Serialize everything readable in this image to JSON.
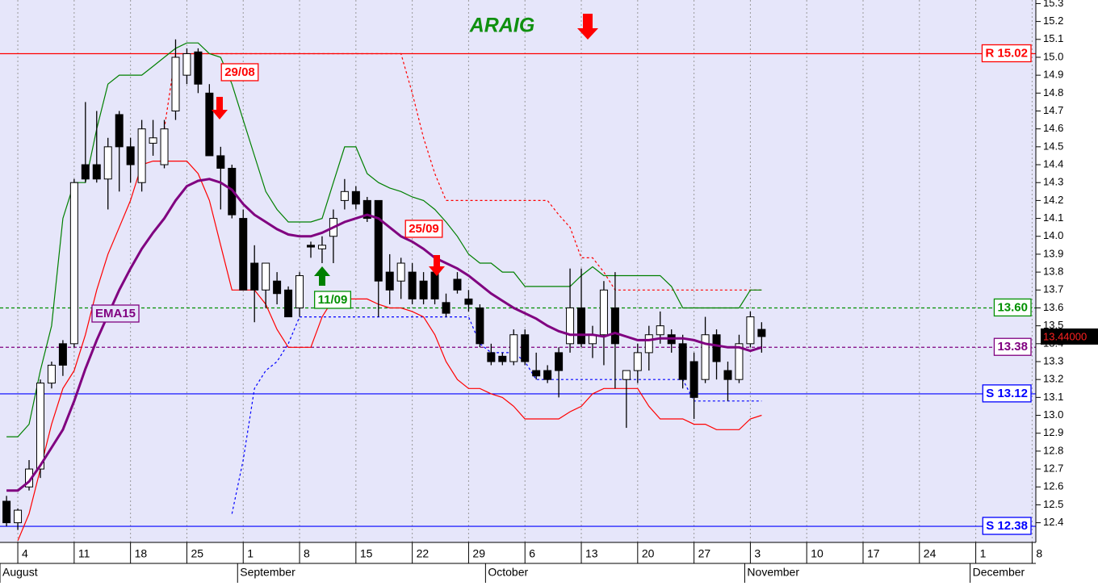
{
  "chart_data": {
    "type": "candlestick",
    "title": "ARAIG",
    "x": [
      -1,
      0,
      1,
      2,
      3,
      4,
      5,
      6,
      7,
      8,
      9,
      10,
      11,
      12,
      13,
      14,
      15,
      16,
      17,
      18,
      19,
      20,
      21,
      22,
      23,
      24,
      25,
      26,
      27,
      28,
      29,
      30,
      31,
      32,
      33,
      34,
      35,
      36,
      37,
      38,
      39,
      40,
      41,
      42,
      43,
      44,
      45,
      46,
      47,
      48,
      49,
      50,
      51,
      52,
      53,
      54,
      55,
      56,
      57,
      58,
      59,
      60,
      61,
      62,
      63,
      64,
      65,
      66
    ],
    "open": [
      12.52,
      12.4,
      12.6,
      12.7,
      13.18,
      13.4,
      13.4,
      14.4,
      14.4,
      14.32,
      14.68,
      14.5,
      14.3,
      14.52,
      14.4,
      14.7,
      14.9,
      15.03,
      14.8,
      14.45,
      14.38,
      14.1,
      13.85,
      13.7,
      13.75,
      13.7,
      13.6,
      13.95,
      13.93,
      14.0,
      14.2,
      14.25,
      14.2,
      14.2,
      13.8,
      13.75,
      13.8,
      13.75,
      13.8,
      13.63,
      13.76,
      13.65,
      13.6,
      13.35,
      13.33,
      13.3,
      13.45,
      13.25,
      13.25,
      13.35,
      13.4,
      13.6,
      13.4,
      13.45,
      13.6,
      13.2,
      13.25,
      13.35,
      13.45,
      13.45,
      13.4,
      13.3,
      13.2,
      13.45,
      13.25,
      13.2,
      13.4,
      13.48
    ],
    "high": [
      12.55,
      12.48,
      12.75,
      13.2,
      13.3,
      13.42,
      14.32,
      14.75,
      14.7,
      14.55,
      14.7,
      14.55,
      14.65,
      14.65,
      14.65,
      15.1,
      15.05,
      15.05,
      14.85,
      14.5,
      14.4,
      14.15,
      13.95,
      13.85,
      13.8,
      13.72,
      13.8,
      13.97,
      14.0,
      14.15,
      14.32,
      14.28,
      14.22,
      14.2,
      13.9,
      13.88,
      13.85,
      13.8,
      13.82,
      13.68,
      13.8,
      13.7,
      13.62,
      13.4,
      13.35,
      13.48,
      13.48,
      13.35,
      13.28,
      13.38,
      13.82,
      13.82,
      13.5,
      13.75,
      13.8,
      13.25,
      13.4,
      13.5,
      13.58,
      13.48,
      13.45,
      13.35,
      13.55,
      13.48,
      13.3,
      13.45,
      13.58,
      13.52
    ],
    "low": [
      12.38,
      12.36,
      12.58,
      12.65,
      13.15,
      13.22,
      13.38,
      14.3,
      14.3,
      14.15,
      14.25,
      14.3,
      14.25,
      14.45,
      14.38,
      14.65,
      14.85,
      14.8,
      14.45,
      14.15,
      14.1,
      13.7,
      13.52,
      13.6,
      13.62,
      13.55,
      13.55,
      13.88,
      13.85,
      13.85,
      14.15,
      14.15,
      14.08,
      13.55,
      13.62,
      13.65,
      13.62,
      13.62,
      13.62,
      13.55,
      13.68,
      13.58,
      13.38,
      13.28,
      13.28,
      13.28,
      13.28,
      13.2,
      13.18,
      13.1,
      13.35,
      13.38,
      13.32,
      13.28,
      13.15,
      12.93,
      13.18,
      13.25,
      13.4,
      13.35,
      13.15,
      12.98,
      13.18,
      13.2,
      13.08,
      13.18,
      13.38,
      13.35
    ],
    "close": [
      12.4,
      12.47,
      12.7,
      13.18,
      13.28,
      13.28,
      14.3,
      14.32,
      14.32,
      14.5,
      14.5,
      14.4,
      14.6,
      14.55,
      14.6,
      15.0,
      15.02,
      14.85,
      14.45,
      14.38,
      14.12,
      13.7,
      13.7,
      13.85,
      13.68,
      13.55,
      13.78,
      13.94,
      13.95,
      14.1,
      14.25,
      14.18,
      14.1,
      13.75,
      13.7,
      13.85,
      13.65,
      13.65,
      13.65,
      13.57,
      13.7,
      13.62,
      13.4,
      13.3,
      13.3,
      13.45,
      13.3,
      13.22,
      13.2,
      13.25,
      13.6,
      13.4,
      13.45,
      13.7,
      13.4,
      13.25,
      13.35,
      13.45,
      13.5,
      13.4,
      13.2,
      13.1,
      13.45,
      13.3,
      13.2,
      13.4,
      13.55,
      13.44
    ],
    "series": [
      {
        "color": "#ff0000",
        "style": "dashed",
        "values": [
          null,
          null,
          null,
          null,
          null,
          null,
          null,
          null,
          null,
          null,
          null,
          null,
          null,
          null,
          14.6,
          15.02,
          15.02,
          15.02,
          15.02,
          15.02,
          15.02,
          15.02,
          15.02,
          15.02,
          15.02,
          15.02,
          15.02,
          15.02,
          15.02,
          15.02,
          15.02,
          15.02,
          15.02,
          15.02,
          15.02,
          15.02,
          14.8,
          14.55,
          14.35,
          14.2,
          14.2,
          14.2,
          14.2,
          14.2,
          14.2,
          14.2,
          14.2,
          14.2,
          14.2,
          14.12,
          14.05,
          13.88,
          13.88,
          13.8,
          13.7,
          13.7,
          13.7,
          13.7,
          13.7,
          13.7,
          13.7,
          13.7,
          13.7,
          13.7,
          13.7,
          13.7,
          13.7,
          13.7
        ]
      },
      {
        "color": "#0000ff",
        "style": "dashed",
        "values": [
          null,
          null,
          null,
          null,
          null,
          null,
          null,
          null,
          null,
          null,
          null,
          null,
          null,
          null,
          null,
          null,
          null,
          null,
          null,
          null,
          12.45,
          12.75,
          13.15,
          13.25,
          13.3,
          13.4,
          13.55,
          13.55,
          13.55,
          13.55,
          13.55,
          13.55,
          13.55,
          13.55,
          13.55,
          13.55,
          13.55,
          13.55,
          13.55,
          13.55,
          13.55,
          13.55,
          13.4,
          13.35,
          13.35,
          13.35,
          13.3,
          13.2,
          13.2,
          13.2,
          13.2,
          13.2,
          13.2,
          13.2,
          13.2,
          13.2,
          13.2,
          13.2,
          13.2,
          13.2,
          13.2,
          13.08,
          13.08,
          13.08,
          13.08,
          13.08,
          13.08,
          13.08
        ]
      },
      {
        "color": "#008000",
        "style": "solid",
        "values": [
          12.88,
          12.88,
          12.95,
          13.25,
          13.5,
          14.1,
          14.3,
          14.3,
          14.6,
          14.85,
          14.9,
          14.9,
          14.9,
          14.95,
          15.0,
          15.05,
          15.08,
          15.08,
          15.02,
          15.0,
          14.85,
          14.65,
          14.45,
          14.25,
          14.15,
          14.08,
          14.08,
          14.08,
          14.1,
          14.3,
          14.5,
          14.5,
          14.35,
          14.3,
          14.27,
          14.25,
          14.22,
          14.2,
          14.15,
          14.08,
          14.0,
          13.9,
          13.85,
          13.85,
          13.8,
          13.8,
          13.72,
          13.72,
          13.72,
          13.72,
          13.72,
          13.78,
          13.83,
          13.78,
          13.78,
          13.78,
          13.78,
          13.78,
          13.78,
          13.72,
          13.6,
          13.6,
          13.6,
          13.6,
          13.6,
          13.6,
          13.7,
          13.7
        ]
      },
      {
        "color": "#ff0000",
        "style": "solid",
        "values": [
          null,
          12.3,
          12.45,
          12.7,
          12.95,
          13.15,
          13.25,
          13.45,
          13.7,
          13.9,
          14.05,
          14.2,
          14.4,
          14.42,
          14.42,
          14.42,
          14.42,
          14.35,
          14.2,
          13.95,
          13.7,
          13.7,
          13.7,
          13.62,
          13.48,
          13.38,
          13.38,
          13.38,
          13.55,
          13.65,
          13.65,
          13.65,
          13.65,
          13.62,
          13.6,
          13.6,
          13.58,
          13.55,
          13.45,
          13.3,
          13.2,
          13.15,
          13.15,
          13.12,
          13.1,
          13.05,
          12.98,
          12.98,
          12.98,
          12.98,
          13.02,
          13.05,
          13.12,
          13.15,
          13.15,
          13.15,
          13.15,
          13.05,
          12.98,
          12.98,
          12.98,
          12.95,
          12.95,
          12.92,
          12.92,
          12.92,
          12.98,
          13.0
        ]
      },
      {
        "name": "EMA15",
        "color": "#800080",
        "style": "thick",
        "values": [
          12.58,
          12.58,
          12.63,
          12.72,
          12.82,
          12.92,
          13.08,
          13.26,
          13.42,
          13.56,
          13.7,
          13.82,
          13.93,
          14.02,
          14.1,
          14.2,
          14.28,
          14.31,
          14.32,
          14.3,
          14.26,
          14.18,
          14.12,
          14.08,
          14.04,
          14.01,
          14.0,
          14.0,
          14.02,
          14.05,
          14.08,
          14.1,
          14.12,
          14.1,
          14.05,
          14.0,
          13.97,
          13.93,
          13.88,
          13.85,
          13.82,
          13.78,
          13.73,
          13.68,
          13.64,
          13.6,
          13.57,
          13.54,
          13.5,
          13.47,
          13.45,
          13.45,
          13.45,
          13.44,
          13.46,
          13.44,
          13.42,
          13.42,
          13.43,
          13.43,
          13.43,
          13.42,
          13.4,
          13.39,
          13.38,
          13.38,
          13.36,
          13.38
        ]
      }
    ],
    "levels": [
      {
        "label": "R 15.02",
        "value": 15.02,
        "color": "#ff0000",
        "style": "solid"
      },
      {
        "label": "13.60",
        "value": 13.6,
        "color": "#009000",
        "style": "dashed"
      },
      {
        "label": "13.38",
        "value": 13.38,
        "color": "#800080",
        "style": "dashed"
      },
      {
        "label": "S 13.12",
        "value": 13.12,
        "color": "#0000ff",
        "style": "solid"
      },
      {
        "label": "S 12.38",
        "value": 12.38,
        "color": "#0000ff",
        "style": "solid"
      }
    ],
    "last_price": {
      "value": 13.44,
      "label": "13.44000"
    },
    "annotations": [
      {
        "text": "29/08",
        "color": "#ff0000"
      },
      {
        "text": "11/09",
        "color": "#009000"
      },
      {
        "text": "25/09",
        "color": "#ff0000"
      },
      {
        "text": "EMA15",
        "color": "#800080"
      }
    ],
    "xlim": [
      -1.58,
      90.33
    ],
    "ylim": [
      12.29,
      15.32
    ],
    "xticks": [
      {
        "value": 0,
        "label": "4"
      },
      {
        "value": 5,
        "label": "11"
      },
      {
        "value": 10,
        "label": "18"
      },
      {
        "value": 15,
        "label": "25"
      },
      {
        "value": 20,
        "label": "1"
      },
      {
        "value": 25,
        "label": "8"
      },
      {
        "value": 30,
        "label": "15"
      },
      {
        "value": 35,
        "label": "22"
      },
      {
        "value": 40,
        "label": "29"
      },
      {
        "value": 45,
        "label": "6"
      },
      {
        "value": 50,
        "label": "13"
      },
      {
        "value": 55,
        "label": "20"
      },
      {
        "value": 60,
        "label": "27"
      },
      {
        "value": 65,
        "label": "3"
      },
      {
        "value": 70,
        "label": "10"
      },
      {
        "value": 75,
        "label": "17"
      },
      {
        "value": 80,
        "label": "24"
      },
      {
        "value": 85,
        "label": "1"
      },
      {
        "value": 90,
        "label": "8"
      }
    ],
    "months": [
      {
        "value": -1.58,
        "label": "August"
      },
      {
        "value": 19.5,
        "label": "September"
      },
      {
        "value": 41.5,
        "label": "October"
      },
      {
        "value": 64.5,
        "label": "November"
      },
      {
        "value": 84.5,
        "label": "December"
      }
    ],
    "yticks": [
      12.4,
      12.5,
      12.6,
      12.7,
      12.8,
      12.9,
      {
        "value": 13,
        "label": "13.0"
      },
      13.1,
      13.2,
      13.3,
      13.4,
      13.5,
      13.6,
      13.7,
      13.8,
      13.9,
      {
        "value": 14,
        "label": "14.0"
      },
      14.1,
      14.2,
      14.3,
      14.4,
      14.5,
      14.6,
      14.7,
      14.8,
      14.9,
      {
        "value": 15,
        "label": "15.0"
      },
      15.1,
      15.2,
      15.3
    ],
    "grid": true,
    "up_color": "#ffffff",
    "down_color": "#000000"
  }
}
